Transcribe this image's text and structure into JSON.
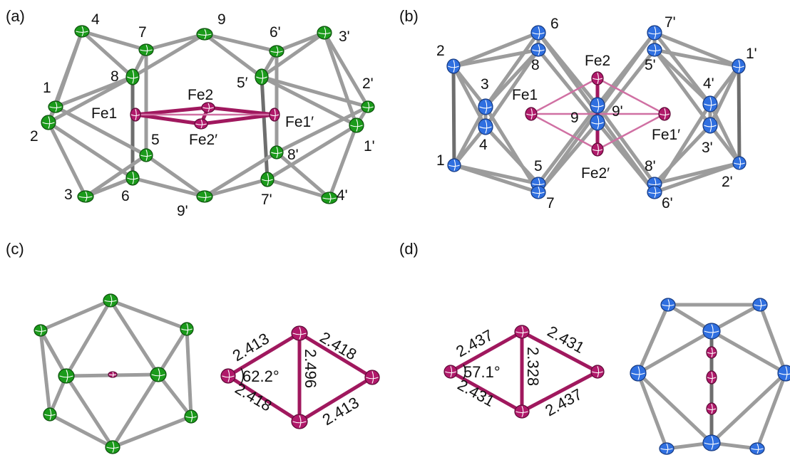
{
  "panels": {
    "a": "(a)",
    "b": "(b)",
    "c": "(c)",
    "d": "(d)"
  },
  "a_labels": {
    "n4": "4",
    "n7": "7",
    "n9": "9",
    "n6p": "6'",
    "n3p": "3'",
    "n8": "8",
    "n1": "1",
    "fe1": "Fe1",
    "fe2": "Fe2",
    "n5p": "5′",
    "n2p": "2'",
    "fe1p": "Fe1′",
    "n2": "2",
    "n5": "5",
    "fe2p": "Fe2′",
    "n8p": "8'",
    "n1p": "1'",
    "n3": "3",
    "n6": "6",
    "n9p": "9'",
    "n7p": "7'",
    "n4p": "4'"
  },
  "b_labels": {
    "n6": "6",
    "n7p": "7'",
    "n2": "2",
    "n8": "8",
    "fe2": "Fe2",
    "n5p": "5'",
    "n1p": "1'",
    "n3": "3",
    "n4p": "4'",
    "fe1": "Fe1",
    "n9": "9",
    "n9p": "9'",
    "n4": "4",
    "fe1p": "Fe1′",
    "n3p": "3'",
    "n1": "1",
    "n5": "5",
    "n8p": "8'",
    "fe2p": "Fe2′",
    "n2p": "2'",
    "n7": "7",
    "n6p": "6'"
  },
  "c_measure": {
    "top_left": "2.413",
    "top_right": "2.418",
    "diag": "2.496",
    "bottom_left": "2.418",
    "bottom_right": "2.413",
    "angle": "62.2°"
  },
  "d_measure": {
    "top_left": "2.437",
    "top_right": "2.431",
    "diag": "2.328",
    "bottom_left": "2.431",
    "bottom_right": "2.437",
    "angle": "57.1°"
  },
  "colors": {
    "boron_green": "#1a9a1a",
    "boron_blue": "#2f6fe0",
    "iron_magenta": "#b0196a",
    "bond_grey": "#9c9c9c"
  }
}
